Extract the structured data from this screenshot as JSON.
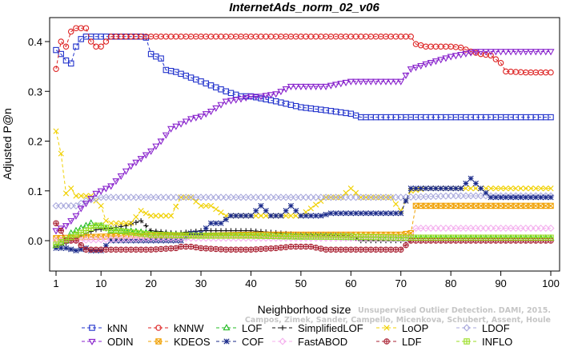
{
  "chart_data": {
    "type": "line",
    "title": "InternetAds_norm_02_v06",
    "xlabel": "Neighborhood size",
    "ylabel": "Adjusted P@n",
    "xlim": [
      1,
      100
    ],
    "ylim": [
      -0.04,
      0.44
    ],
    "xticks": [
      "1",
      "10",
      "20",
      "30",
      "40",
      "50",
      "60",
      "70",
      "80",
      "90",
      "100"
    ],
    "xtick_values": [
      1,
      10,
      20,
      30,
      40,
      50,
      60,
      70,
      80,
      90,
      100
    ],
    "yticks": [
      "0.0",
      "0.1",
      "0.2",
      "0.3",
      "0.4"
    ],
    "ytick_values": [
      0,
      0.1,
      0.2,
      0.3,
      0.4
    ],
    "grid": false,
    "legend_position": "bottom",
    "watermark": [
      "Unsupervised Outlier Detection. DAMI, 2015.",
      "Campos, Zimek, Sander, Campello, Micenkova, Schubert, Assent, Houle"
    ],
    "series": [
      {
        "name": "kNN",
        "color": "#2233cc",
        "marker": "square",
        "dash": "4,3",
        "x": [
          1,
          2,
          3,
          4,
          5,
          6,
          7,
          8,
          9,
          10,
          12,
          15,
          18,
          19,
          20,
          21,
          22,
          23,
          25,
          30,
          35,
          38,
          40,
          45,
          50,
          55,
          60,
          62,
          65,
          70,
          75,
          80,
          85,
          90,
          95,
          100
        ],
        "y": [
          0.383,
          0.375,
          0.362,
          0.356,
          0.39,
          0.405,
          0.41,
          0.41,
          0.41,
          0.41,
          0.41,
          0.41,
          0.41,
          0.408,
          0.375,
          0.37,
          0.366,
          0.343,
          0.339,
          0.32,
          0.3,
          0.29,
          0.29,
          0.28,
          0.268,
          0.262,
          0.255,
          0.248,
          0.248,
          0.248,
          0.248,
          0.248,
          0.248,
          0.248,
          0.248,
          0.248
        ]
      },
      {
        "name": "kNNW",
        "color": "#dd2222",
        "marker": "circle",
        "dash": "4,3",
        "x": [
          1,
          2,
          3,
          4,
          5,
          6,
          7,
          8,
          9,
          10,
          12,
          20,
          30,
          40,
          50,
          60,
          70,
          72,
          73,
          75,
          80,
          82,
          84,
          86,
          88,
          90,
          91,
          95,
          100
        ],
        "y": [
          0.345,
          0.4,
          0.39,
          0.42,
          0.427,
          0.427,
          0.427,
          0.4,
          0.39,
          0.39,
          0.41,
          0.41,
          0.41,
          0.41,
          0.41,
          0.41,
          0.41,
          0.41,
          0.395,
          0.39,
          0.39,
          0.388,
          0.38,
          0.375,
          0.372,
          0.357,
          0.34,
          0.338,
          0.338
        ]
      },
      {
        "name": "LOF",
        "color": "#22bb22",
        "marker": "triangle",
        "dash": "4,3",
        "x": [
          1,
          2,
          3,
          4,
          5,
          6,
          7,
          8,
          9,
          10,
          12,
          15,
          20,
          25,
          30,
          40,
          50,
          60,
          70,
          80,
          90,
          100
        ],
        "y": [
          -0.01,
          -0.005,
          0.0,
          0.015,
          0.02,
          0.025,
          0.03,
          0.035,
          0.03,
          0.03,
          0.02,
          0.02,
          0.015,
          0.012,
          0.01,
          0.01,
          0.008,
          0.006,
          0.005,
          0.005,
          0.005,
          0.005
        ]
      },
      {
        "name": "SimplifiedLOF",
        "color": "#111111",
        "marker": "plus",
        "dash": "4,3",
        "x": [
          1,
          3,
          5,
          7,
          9,
          10,
          12,
          15,
          18,
          20,
          25,
          30,
          40,
          50,
          60,
          62,
          70,
          75,
          80,
          90,
          100
        ],
        "y": [
          -0.012,
          -0.005,
          0.005,
          0.015,
          0.022,
          0.023,
          0.025,
          0.03,
          0.04,
          0.02,
          0.015,
          0.02,
          0.02,
          0.012,
          0.01,
          0.0,
          0.0,
          0.0,
          0.0,
          0.0,
          0.0
        ]
      },
      {
        "name": "LoOP",
        "color": "#f0d000",
        "marker": "x",
        "dash": "4,3",
        "x": [
          1,
          2,
          3,
          4,
          5,
          6,
          7,
          8,
          10,
          11,
          12,
          14,
          16,
          18,
          20,
          22,
          24,
          26,
          28,
          30,
          32,
          35,
          38,
          40,
          45,
          50,
          55,
          58,
          60,
          62,
          65,
          68,
          70,
          72,
          75,
          80,
          85,
          90,
          95,
          100
        ],
        "y": [
          0.22,
          0.175,
          0.095,
          0.105,
          0.09,
          0.09,
          0.09,
          0.09,
          0.07,
          0.04,
          0.035,
          0.035,
          0.035,
          0.06,
          0.05,
          0.05,
          0.05,
          0.087,
          0.087,
          0.07,
          0.07,
          0.05,
          0.05,
          0.05,
          0.05,
          0.05,
          0.087,
          0.087,
          0.105,
          0.087,
          0.087,
          0.087,
          0.06,
          0.1,
          0.105,
          0.105,
          0.105,
          0.105,
          0.105,
          0.105
        ]
      },
      {
        "name": "LDOF",
        "color": "#aaaadd",
        "marker": "diamond",
        "dash": "4,3",
        "x": [
          1,
          3,
          5,
          7,
          10,
          15,
          20,
          30,
          40,
          50,
          60,
          70,
          80,
          90,
          100
        ],
        "y": [
          0.07,
          0.07,
          0.07,
          0.08,
          0.087,
          0.087,
          0.087,
          0.087,
          0.087,
          0.087,
          0.087,
          0.087,
          0.09,
          0.09,
          0.09
        ]
      },
      {
        "name": "ODIN",
        "color": "#8822cc",
        "marker": "triangle-down",
        "dash": "4,3",
        "x": [
          1,
          2,
          3,
          4,
          5,
          6,
          7,
          8,
          9,
          10,
          12,
          14,
          16,
          18,
          20,
          22,
          24,
          26,
          28,
          30,
          32,
          35,
          38,
          40,
          42,
          45,
          48,
          50,
          55,
          60,
          65,
          70,
          72,
          75,
          80,
          85,
          90,
          95,
          100
        ],
        "y": [
          0.02,
          0.025,
          0.03,
          0.04,
          0.05,
          0.065,
          0.075,
          0.085,
          0.095,
          0.1,
          0.11,
          0.13,
          0.15,
          0.165,
          0.18,
          0.2,
          0.225,
          0.235,
          0.245,
          0.25,
          0.26,
          0.28,
          0.285,
          0.29,
          0.29,
          0.295,
          0.31,
          0.31,
          0.31,
          0.32,
          0.32,
          0.32,
          0.345,
          0.355,
          0.37,
          0.38,
          0.38,
          0.38,
          0.38
        ]
      },
      {
        "name": "KDEOS",
        "color": "#f0a000",
        "marker": "square-x",
        "dash": "4,3",
        "x": [
          1,
          10,
          20,
          30,
          40,
          50,
          60,
          70,
          72,
          73,
          80,
          90,
          100
        ],
        "y": [
          0.005,
          0.008,
          0.01,
          0.01,
          0.012,
          0.012,
          0.012,
          0.012,
          0.015,
          0.07,
          0.07,
          0.07,
          0.07
        ]
      },
      {
        "name": "COF",
        "color": "#1a2a8a",
        "marker": "star",
        "dash": "4,3",
        "x": [
          1,
          3,
          5,
          7,
          8,
          10,
          12,
          14,
          16,
          18,
          20,
          22,
          24,
          26,
          28,
          30,
          32,
          34,
          36,
          38,
          40,
          42,
          44,
          46,
          48,
          50,
          52,
          54,
          56,
          58,
          60,
          62,
          65,
          68,
          70,
          72,
          75,
          80,
          82,
          84,
          86,
          88,
          90,
          95,
          100
        ],
        "y": [
          -0.015,
          -0.015,
          -0.02,
          -0.015,
          -0.02,
          -0.02,
          0.0,
          0.0,
          0.0,
          0.0,
          0.0,
          0.0,
          0.0,
          0.0,
          0.015,
          0.015,
          0.035,
          0.035,
          0.05,
          0.05,
          0.05,
          0.07,
          0.05,
          0.05,
          0.07,
          0.05,
          0.05,
          0.05,
          0.055,
          0.055,
          0.055,
          0.055,
          0.055,
          0.055,
          0.055,
          0.105,
          0.105,
          0.105,
          0.105,
          0.125,
          0.105,
          0.087,
          0.087,
          0.087,
          0.087
        ]
      },
      {
        "name": "FastABOD",
        "color": "#f4b0ee",
        "marker": "diamond",
        "dash": "4,3",
        "x": [
          1,
          10,
          20,
          30,
          40,
          50,
          60,
          70,
          72,
          73,
          80,
          90,
          100
        ],
        "y": [
          0.0,
          0.002,
          0.005,
          0.005,
          0.005,
          0.005,
          0.005,
          0.005,
          0.005,
          0.025,
          0.025,
          0.025,
          0.025
        ]
      },
      {
        "name": "LDF",
        "color": "#aa2233",
        "marker": "circle-plus",
        "dash": "4,3",
        "x": [
          1,
          2,
          3,
          5,
          7,
          8,
          9,
          10,
          12,
          15,
          20,
          25,
          26,
          28,
          30,
          35,
          40,
          45,
          48,
          50,
          52,
          55,
          60,
          62,
          65,
          68,
          69,
          70,
          72,
          75,
          80,
          90,
          100
        ],
        "y": [
          0.035,
          0.02,
          0.0,
          0.0,
          -0.018,
          -0.018,
          -0.018,
          -0.018,
          -0.018,
          -0.018,
          -0.018,
          -0.015,
          -0.012,
          -0.012,
          -0.015,
          -0.018,
          -0.018,
          -0.015,
          -0.012,
          -0.012,
          -0.012,
          -0.018,
          -0.018,
          -0.018,
          -0.018,
          -0.018,
          -0.018,
          -0.018,
          0.0,
          0.0,
          0.0,
          0.0,
          0.0
        ]
      },
      {
        "name": "INFLO",
        "color": "#99dd22",
        "marker": "square-cross",
        "dash": "4,3",
        "x": [
          1,
          3,
          5,
          7,
          9,
          10,
          12,
          15,
          20,
          30,
          40,
          50,
          60,
          70,
          80,
          90,
          100
        ],
        "y": [
          -0.008,
          0.002,
          0.012,
          0.02,
          0.03,
          0.03,
          0.022,
          0.018,
          0.012,
          0.01,
          0.01,
          0.008,
          0.008,
          0.006,
          0.006,
          0.006,
          0.006
        ]
      }
    ]
  }
}
